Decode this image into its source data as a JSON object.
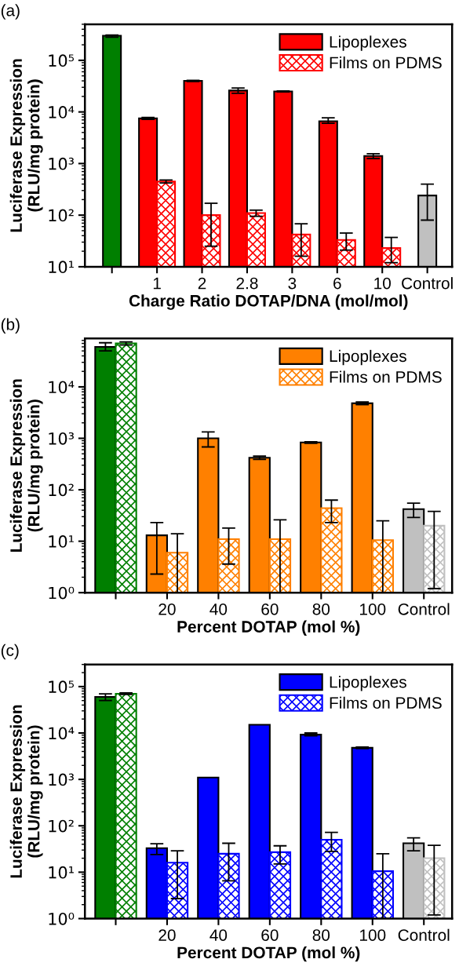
{
  "chart_data": [
    {
      "type": "bar",
      "title": "(a)",
      "xlabel": "Charge Ratio DOTAP/DNA (mol/mol)",
      "ylabel": "Luciferase Expression\n(RLU/mg protein)",
      "log": true,
      "legend": "top right",
      "grid": false,
      "categories": [
        null,
        "1",
        "2",
        "2.8",
        "3",
        "6",
        "10",
        "Control"
      ],
      "ylim": [
        10,
        500000
      ],
      "yticks": [
        {
          "value": 10,
          "label": "10¹"
        },
        {
          "value": 100,
          "label": "10²"
        },
        {
          "value": 1000,
          "label": "10³"
        },
        {
          "value": 10000,
          "label": "10⁴"
        },
        {
          "value": 100000,
          "label": "10⁵"
        }
      ],
      "series": [
        {
          "name": "Lipoplexes",
          "color": "#ff0000",
          "colors": [
            "#007f00",
            "#ff0000",
            "#ff0000",
            "#ff0000",
            "#ff0000",
            "#ff0000",
            "#ff0000",
            "#c0c0c0"
          ],
          "values": [
            300000,
            7500,
            40000,
            26000,
            25000,
            6600,
            1400,
            240
          ],
          "errors": [
            [
              280000,
              310000
            ],
            [
              7200,
              7800
            ],
            [
              39000,
              41000
            ],
            [
              23000,
              29000
            ],
            [
              24500,
              25500
            ],
            [
              6000,
              7700
            ],
            [
              1250,
              1550
            ],
            [
              80,
              400
            ]
          ]
        },
        {
          "name": "Films on PDMS",
          "color": "#ff0000",
          "colors": [
            null,
            "#ff0000",
            "#ff0000",
            "#ff0000",
            "#ff0000",
            "#ff0000",
            "#ff0000",
            null
          ],
          "values": [
            null,
            450,
            100,
            110,
            42,
            33,
            23,
            null
          ],
          "errors": [
            null,
            [
              420,
              480
            ],
            [
              25,
              170
            ],
            [
              95,
              125
            ],
            [
              16,
              68
            ],
            [
              21,
              45
            ],
            [
              12,
              37
            ],
            null
          ]
        }
      ]
    },
    {
      "type": "bar",
      "title": "(b)",
      "xlabel": "Percent DOTAP (mol %)",
      "ylabel": "Luciferase Expression\n(RLU/mg protein)",
      "log": true,
      "legend": "top right",
      "grid": false,
      "categories": [
        null,
        "20",
        "40",
        "60",
        "80",
        "100",
        "Control"
      ],
      "ylim": [
        1,
        87000
      ],
      "yticks": [
        {
          "value": 1,
          "label": "10⁰"
        },
        {
          "value": 10,
          "label": "10¹"
        },
        {
          "value": 100,
          "label": "10²"
        },
        {
          "value": 1000,
          "label": "10³"
        },
        {
          "value": 10000,
          "label": "10⁴"
        }
      ],
      "series": [
        {
          "name": "Lipoplexes",
          "color": "#ff8000",
          "colors": [
            "#007f00",
            "#ff8000",
            "#ff8000",
            "#ff8000",
            "#ff8000",
            "#ff8000",
            "#c0c0c0"
          ],
          "values": [
            60000,
            13,
            1000,
            420,
            830,
            4800,
            42
          ],
          "errors": [
            [
              50000,
              72000
            ],
            [
              2.3,
              23
            ],
            [
              680,
              1330
            ],
            [
              390,
              450
            ],
            [
              800,
              860
            ],
            [
              4500,
              5100
            ],
            [
              29,
              55
            ]
          ]
        },
        {
          "name": "Films on PDMS",
          "color": "#ff8000",
          "colors": [
            "#007f00",
            "#ff8000",
            "#ff8000",
            "#ff8000",
            "#ff8000",
            "#ff8000",
            "#c0c0c0"
          ],
          "values": [
            70000,
            6,
            11,
            11,
            44,
            10.5,
            20
          ],
          "errors": [
            [
              65000,
              75000
            ],
            [
              1,
              14
            ],
            [
              3.6,
              18
            ],
            [
              1,
              26
            ],
            [
              23,
              63
            ],
            [
              1,
              25
            ],
            [
              1.2,
              38
            ]
          ]
        }
      ]
    },
    {
      "type": "bar",
      "title": "(c)",
      "xlabel": "Percent DOTAP (mol %)",
      "ylabel": "Luciferase Expression\n(RLU/mg protein)",
      "log": true,
      "legend": "top right",
      "grid": false,
      "categories": [
        null,
        "20",
        "40",
        "60",
        "80",
        "100",
        "Control"
      ],
      "ylim": [
        1,
        300000
      ],
      "yticks": [
        {
          "value": 1,
          "label": "10⁰"
        },
        {
          "value": 10,
          "label": "10¹"
        },
        {
          "value": 100,
          "label": "10²"
        },
        {
          "value": 1000,
          "label": "10³"
        },
        {
          "value": 10000,
          "label": "10⁴"
        },
        {
          "value": 100000,
          "label": "10⁵"
        }
      ],
      "series": [
        {
          "name": "Lipoplexes",
          "color": "#0000ff",
          "colors": [
            "#007f00",
            "#0000ff",
            "#0000ff",
            "#0000ff",
            "#0000ff",
            "#0000ff",
            "#c0c0c0"
          ],
          "values": [
            60000,
            33,
            1100,
            15000,
            9200,
            4800,
            42
          ],
          "errors": [
            [
              50000,
              70000
            ],
            [
              24,
              41
            ],
            null,
            null,
            [
              8700,
              10000
            ],
            [
              4600,
              5000
            ],
            [
              29,
              55
            ]
          ]
        },
        {
          "name": "Films on PDMS",
          "color": "#0000ff",
          "colors": [
            "#007f00",
            "#0000ff",
            "#0000ff",
            "#0000ff",
            "#0000ff",
            "#0000ff",
            "#c0c0c0"
          ],
          "values": [
            70000,
            16,
            25,
            27,
            50,
            10.5,
            20
          ],
          "errors": [
            [
              68000,
              73000
            ],
            [
              2.7,
              29
            ],
            [
              6.5,
              42
            ],
            [
              15,
              37
            ],
            [
              28,
              72
            ],
            [
              1,
              25
            ],
            [
              1.2,
              38
            ]
          ]
        }
      ]
    }
  ]
}
